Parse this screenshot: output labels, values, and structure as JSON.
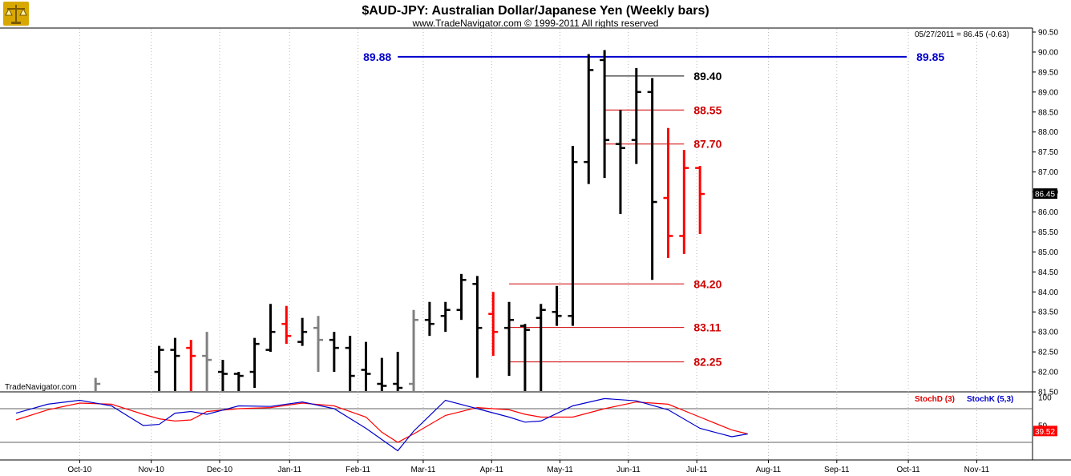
{
  "header": {
    "title": "$AUD-JPY:  Australian Dollar/Japanese Yen  (Weekly bars)",
    "subtitle": "www.TradeNavigator.com © 1999-2011 All rights reserved",
    "watermark": "TradeNavigator.com",
    "info": "05/27/2011 = 86.45 (-0.63)",
    "logo_icon": "scales-icon"
  },
  "colors": {
    "up_bar": "#000000",
    "down_bar": "#ff0000",
    "grey_bar": "#808080",
    "blue_line": "#0000cc",
    "red_level": "#d00000",
    "stoch_d": "#ff0000",
    "stoch_k": "#0000cc",
    "last_price_bg": "#000000"
  },
  "chart_data": {
    "type": "ohlc",
    "title": "$AUD-JPY:  Australian Dollar/Japanese Yen  (Weekly bars)",
    "price_axis": {
      "ylim": [
        81.5,
        90.5
      ],
      "ticks": [
        "90.50",
        "90.00",
        "89.50",
        "89.00",
        "88.50",
        "88.00",
        "87.50",
        "87.00",
        "86.50",
        "86.00",
        "85.50",
        "85.00",
        "84.50",
        "84.00",
        "83.50",
        "83.00",
        "82.50",
        "82.00",
        "81.50"
      ],
      "last_price": "86.45"
    },
    "x_axis": {
      "labels": [
        {
          "label": "Oct-10",
          "x": 4
        },
        {
          "label": "Nov-10",
          "x": 8.5
        },
        {
          "label": "Dec-10",
          "x": 12.8
        },
        {
          "label": "Jan-11",
          "x": 17.2
        },
        {
          "label": "Feb-11",
          "x": 21.5
        },
        {
          "label": "Mar-11",
          "x": 25.6
        },
        {
          "label": "Apr-11",
          "x": 29.9
        },
        {
          "label": "May-11",
          "x": 34.2
        },
        {
          "label": "Jun-11",
          "x": 38.5
        },
        {
          "label": "Jul-11",
          "x": 42.8
        },
        {
          "label": "Aug-11",
          "x": 47.3
        },
        {
          "label": "Sep-11",
          "x": 51.6
        },
        {
          "label": "Oct-11",
          "x": 56.1
        },
        {
          "label": "Nov-11",
          "x": 60.4
        }
      ],
      "range": [
        0,
        63
      ]
    },
    "bars": [
      {
        "x": 5,
        "o": 81.0,
        "h": 81.85,
        "l": 80.5,
        "c": 81.7,
        "col": "grey"
      },
      {
        "x": 9,
        "o": 82.0,
        "h": 82.65,
        "l": 81.5,
        "c": 82.55,
        "col": "up"
      },
      {
        "x": 10,
        "o": 82.55,
        "h": 82.85,
        "l": 81.5,
        "c": 82.4,
        "col": "up"
      },
      {
        "x": 11,
        "o": 82.6,
        "h": 82.8,
        "l": 81.5,
        "c": 82.4,
        "col": "down"
      },
      {
        "x": 12,
        "o": 82.4,
        "h": 83.0,
        "l": 81.5,
        "c": 82.3,
        "col": "grey"
      },
      {
        "x": 13,
        "o": 82.0,
        "h": 82.3,
        "l": 81.5,
        "c": 81.95,
        "col": "up"
      },
      {
        "x": 14,
        "o": 81.95,
        "h": 82.0,
        "l": 81.5,
        "c": 81.9,
        "col": "up"
      },
      {
        "x": 15,
        "o": 82.0,
        "h": 82.85,
        "l": 81.6,
        "c": 82.7,
        "col": "up"
      },
      {
        "x": 16,
        "o": 82.55,
        "h": 83.7,
        "l": 82.5,
        "c": 83.0,
        "col": "up"
      },
      {
        "x": 17,
        "o": 83.2,
        "h": 83.65,
        "l": 82.7,
        "c": 82.9,
        "col": "down"
      },
      {
        "x": 18,
        "o": 82.75,
        "h": 83.35,
        "l": 82.65,
        "c": 83.0,
        "col": "up"
      },
      {
        "x": 19,
        "o": 83.1,
        "h": 83.4,
        "l": 82.0,
        "c": 82.8,
        "col": "grey"
      },
      {
        "x": 20,
        "o": 82.8,
        "h": 83.0,
        "l": 82.0,
        "c": 82.6,
        "col": "up"
      },
      {
        "x": 21,
        "o": 82.6,
        "h": 82.9,
        "l": 81.5,
        "c": 81.9,
        "col": "up"
      },
      {
        "x": 22,
        "o": 82.05,
        "h": 82.75,
        "l": 81.5,
        "c": 81.95,
        "col": "up"
      },
      {
        "x": 23,
        "o": 81.7,
        "h": 82.35,
        "l": 81.5,
        "c": 81.65,
        "col": "up"
      },
      {
        "x": 24,
        "o": 81.7,
        "h": 82.5,
        "l": 81.5,
        "c": 81.6,
        "col": "up"
      },
      {
        "x": 25,
        "o": 81.7,
        "h": 83.55,
        "l": 81.5,
        "c": 83.3,
        "col": "grey"
      },
      {
        "x": 26,
        "o": 83.3,
        "h": 83.75,
        "l": 82.9,
        "c": 83.2,
        "col": "up"
      },
      {
        "x": 27,
        "o": 83.4,
        "h": 83.75,
        "l": 83.0,
        "c": 83.55,
        "col": "up"
      },
      {
        "x": 28,
        "o": 83.55,
        "h": 84.45,
        "l": 83.3,
        "c": 84.3,
        "col": "up"
      },
      {
        "x": 29,
        "o": 84.2,
        "h": 84.4,
        "l": 81.85,
        "c": 83.1,
        "col": "up"
      },
      {
        "x": 30,
        "o": 83.45,
        "h": 84.0,
        "l": 82.4,
        "c": 83.0,
        "col": "down"
      },
      {
        "x": 31,
        "o": 83.1,
        "h": 83.75,
        "l": 81.9,
        "c": 83.3,
        "col": "up"
      },
      {
        "x": 32,
        "o": 83.15,
        "h": 83.2,
        "l": 81.5,
        "c": 83.05,
        "col": "up"
      },
      {
        "x": 33,
        "o": 83.35,
        "h": 83.7,
        "l": 81.5,
        "c": 83.55,
        "col": "up"
      },
      {
        "x": 34,
        "o": 83.5,
        "h": 84.15,
        "l": 83.15,
        "c": 83.4,
        "col": "up"
      },
      {
        "x": 35,
        "o": 83.4,
        "h": 87.65,
        "l": 83.15,
        "c": 87.25,
        "col": "up"
      },
      {
        "x": 36,
        "o": 87.25,
        "h": 89.95,
        "l": 86.7,
        "c": 89.55,
        "col": "up"
      },
      {
        "x": 37,
        "o": 89.8,
        "h": 90.05,
        "l": 86.85,
        "c": 87.8,
        "col": "up"
      },
      {
        "x": 38,
        "o": 87.7,
        "h": 88.55,
        "l": 85.95,
        "c": 87.6,
        "col": "up"
      },
      {
        "x": 39,
        "o": 87.8,
        "h": 89.6,
        "l": 87.2,
        "c": 89.0,
        "col": "up"
      },
      {
        "x": 40,
        "o": 89.0,
        "h": 89.35,
        "l": 84.3,
        "c": 86.25,
        "col": "up"
      },
      {
        "x": 41,
        "o": 86.35,
        "h": 88.1,
        "l": 84.85,
        "c": 85.4,
        "col": "down"
      },
      {
        "x": 42,
        "o": 85.4,
        "h": 87.55,
        "l": 84.95,
        "c": 87.1,
        "col": "down"
      },
      {
        "x": 43,
        "o": 87.1,
        "h": 87.15,
        "l": 85.45,
        "c": 86.45,
        "col": "down"
      }
    ],
    "levels": [
      {
        "label": "89.88",
        "value": 89.88,
        "x0": 24,
        "x1": 56,
        "color": "blue",
        "label_side": "left",
        "w": 2
      },
      {
        "label": "89.85",
        "value": 89.85,
        "x0": 24,
        "x1": 56,
        "color": "blue",
        "label_side": "right",
        "w": 0
      },
      {
        "label": "89.40",
        "value": 89.4,
        "x0": 37,
        "x1": 42,
        "color": "black",
        "label_side": "right",
        "w": 1
      },
      {
        "label": "88.55",
        "value": 88.55,
        "x0": 37,
        "x1": 42,
        "color": "red",
        "label_side": "right",
        "w": 1
      },
      {
        "label": "87.70",
        "value": 87.7,
        "x0": 37,
        "x1": 42,
        "color": "red",
        "label_side": "right",
        "w": 1
      },
      {
        "label": "84.20",
        "value": 84.2,
        "x0": 31,
        "x1": 42,
        "color": "red",
        "label_side": "right",
        "w": 1
      },
      {
        "label": "83.11",
        "value": 83.11,
        "x0": 31,
        "x1": 42,
        "color": "red",
        "label_side": "right",
        "w": 1
      },
      {
        "label": "82.25",
        "value": 82.25,
        "x0": 31,
        "x1": 42,
        "color": "red",
        "label_side": "right",
        "w": 1
      }
    ],
    "stochastic": {
      "ylim": [
        0,
        100
      ],
      "ticks": [
        "100",
        "50"
      ],
      "last_value": "39.52",
      "reference_lines": [
        80,
        20
      ],
      "series": [
        {
          "name": "StochD (3)",
          "values": [
            [
              0,
              60
            ],
            [
              2,
              78
            ],
            [
              4,
              90
            ],
            [
              6,
              88
            ],
            [
              8,
              70
            ],
            [
              9,
              62
            ],
            [
              10,
              58
            ],
            [
              11,
              60
            ],
            [
              12,
              75
            ],
            [
              14,
              80
            ],
            [
              16,
              82
            ],
            [
              18,
              90
            ],
            [
              20,
              85
            ],
            [
              22,
              65
            ],
            [
              23,
              38
            ],
            [
              24,
              20
            ],
            [
              25,
              35
            ],
            [
              27,
              68
            ],
            [
              29,
              82
            ],
            [
              31,
              78
            ],
            [
              32,
              70
            ],
            [
              33,
              65
            ],
            [
              35,
              65
            ],
            [
              37,
              80
            ],
            [
              39,
              92
            ],
            [
              41,
              88
            ],
            [
              43,
              65
            ],
            [
              45,
              42
            ],
            [
              46,
              35
            ]
          ]
        },
        {
          "name": "StochK (5,3)",
          "values": [
            [
              0,
              72
            ],
            [
              2,
              88
            ],
            [
              4,
              95
            ],
            [
              6,
              85
            ],
            [
              8,
              50
            ],
            [
              9,
              52
            ],
            [
              10,
              72
            ],
            [
              11,
              75
            ],
            [
              12,
              70
            ],
            [
              14,
              85
            ],
            [
              16,
              84
            ],
            [
              18,
              92
            ],
            [
              20,
              80
            ],
            [
              22,
              45
            ],
            [
              23,
              25
            ],
            [
              24,
              5
            ],
            [
              25,
              40
            ],
            [
              27,
              95
            ],
            [
              29,
              80
            ],
            [
              31,
              65
            ],
            [
              32,
              56
            ],
            [
              33,
              58
            ],
            [
              35,
              85
            ],
            [
              37,
              98
            ],
            [
              39,
              94
            ],
            [
              41,
              78
            ],
            [
              43,
              45
            ],
            [
              45,
              30
            ],
            [
              46,
              35
            ]
          ]
        }
      ]
    }
  }
}
